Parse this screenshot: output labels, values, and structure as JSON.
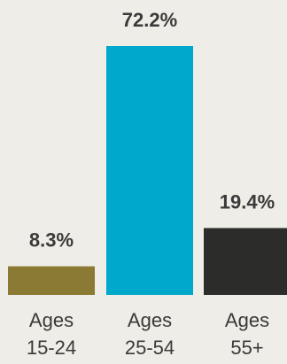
{
  "chart_data": {
    "type": "bar",
    "categories": [
      [
        "Ages",
        "15-24"
      ],
      [
        "Ages",
        "25-54"
      ],
      [
        "Ages",
        "55+"
      ]
    ],
    "values": [
      8.3,
      72.2,
      19.4
    ],
    "value_labels": [
      "8.3%",
      "72.2%",
      "19.4%"
    ],
    "colors": [
      "#8a7a33",
      "#00a9cb",
      "#2c2c2a"
    ],
    "ylim": [
      0,
      72.2
    ],
    "grid": false,
    "legend": "none",
    "title": "",
    "xlabel": "",
    "ylabel": ""
  }
}
